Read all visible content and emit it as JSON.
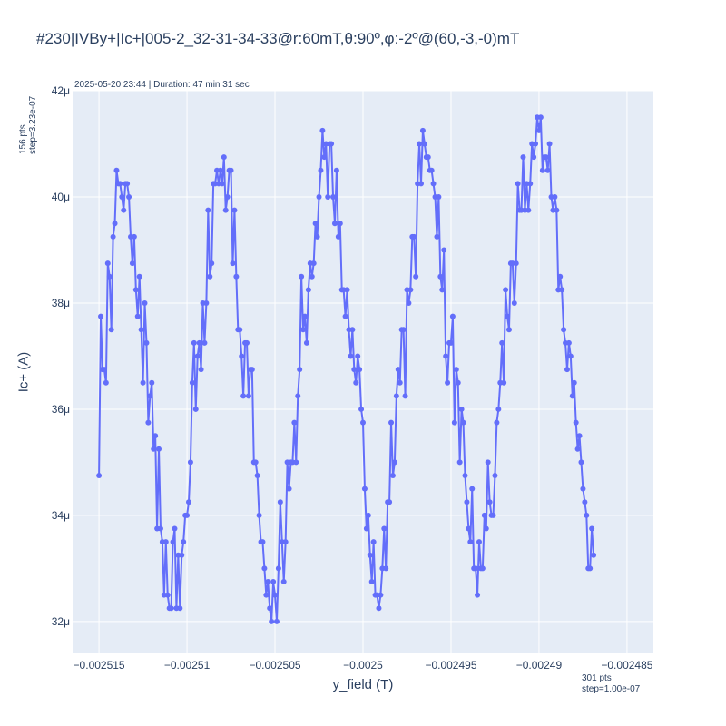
{
  "header": {
    "title": "#230|IVBy+|Ic+|005-2_32-31-34-33@r:60mT,θ:90º,φ:-2º@(60,-3,-0)mT",
    "subtitle": "2025-05-20 23:44 | Duration: 47 min 31 sec",
    "left_note_line1": "156 pts",
    "left_note_line2": "step=3.23e-07",
    "right_note_line1": "301 pts",
    "right_note_line2": "step=1.00e-07"
  },
  "colors": {
    "plot_bg": "#e5ecf6",
    "grid": "#ffffff",
    "series": "#636efa",
    "text": "#2a3f5f"
  },
  "chart_data": {
    "type": "line",
    "xlabel": "y_field (T)",
    "ylabel": "Ic+ (A)",
    "xlim": [
      -0.0025165,
      -0.0024835
    ],
    "ylim": [
      31.4,
      42
    ],
    "x_ticks": [
      -0.002515,
      -0.00251,
      -0.002505,
      -0.0025,
      -0.002495,
      -0.00249,
      -0.002485
    ],
    "x_tick_labels": [
      "−0.002515",
      "−0.00251",
      "−0.002505",
      "−0.0025",
      "−0.002495",
      "−0.00249",
      "−0.002485"
    ],
    "y_ticks": [
      32,
      34,
      36,
      38,
      40,
      42
    ],
    "y_tick_labels": [
      "32μ",
      "34μ",
      "36μ",
      "38μ",
      "40μ",
      "42μ"
    ],
    "grid": true,
    "markers": true,
    "series": [
      {
        "x_start": -0.002515,
        "x_step": 1e-07,
        "values": [
          34.75,
          37.75,
          36.75,
          36.75,
          36.5,
          38.75,
          38.5,
          37.5,
          39.25,
          39.5,
          40.5,
          40.25,
          40.25,
          40.0,
          39.75,
          40.25,
          40.25,
          40.0,
          39.25,
          38.75,
          39.25,
          38.25,
          37.75,
          38.5,
          37.5,
          36.5,
          38.0,
          37.25,
          35.75,
          36.25,
          36.5,
          35.25,
          35.5,
          33.75,
          35.25,
          33.75,
          33.5,
          32.5,
          33.5,
          32.5,
          32.25,
          32.25,
          33.5,
          33.75,
          32.25,
          33.25,
          32.25,
          33.25,
          33.5,
          34.0,
          34.0,
          34.25,
          35.0,
          36.5,
          37.25,
          36.0,
          37.0,
          37.25,
          36.75,
          38.0,
          37.25,
          38.0,
          39.75,
          38.5,
          38.75,
          40.25,
          40.25,
          40.5,
          40.25,
          40.5,
          40.25,
          40.75,
          39.75,
          40.0,
          40.5,
          40.5,
          38.75,
          39.75,
          38.5,
          37.5,
          37.5,
          37.0,
          36.25,
          37.25,
          37.25,
          36.25,
          36.75,
          36.75,
          35.0,
          35.0,
          34.75,
          34.0,
          33.5,
          33.5,
          33.0,
          32.5,
          32.75,
          32.25,
          32.0,
          32.75,
          32.5,
          32.0,
          33.0,
          34.25,
          33.5,
          32.75,
          33.5,
          35.0,
          34.5,
          35.0,
          35.0,
          35.75,
          35.0,
          36.25,
          36.75,
          38.5,
          37.5,
          37.75,
          37.25,
          38.25,
          38.75,
          38.5,
          38.75,
          39.5,
          39.25,
          40.0,
          40.5,
          41.25,
          40.75,
          41.0,
          40.0,
          41.0,
          41.0,
          40.0,
          39.5,
          40.5,
          39.25,
          39.5,
          38.25,
          38.25,
          37.75,
          38.25,
          37.5,
          37.0,
          37.5,
          36.75,
          36.5,
          37.0,
          36.75,
          36.0,
          35.75,
          34.5,
          33.75,
          34.0,
          33.25,
          32.75,
          33.5,
          32.5,
          32.5,
          32.25,
          32.5,
          33.0,
          33.75,
          33.0,
          34.25,
          34.25,
          35.75,
          34.75,
          35.0,
          36.25,
          36.75,
          36.5,
          37.5,
          37.5,
          36.25,
          38.25,
          38.0,
          38.25,
          39.25,
          39.25,
          38.5,
          40.25,
          41.0,
          40.25,
          41.25,
          41.0,
          40.75,
          40.75,
          40.5,
          40.5,
          40.25,
          40.0,
          39.25,
          40.0,
          38.5,
          38.25,
          39.0,
          37.0,
          36.5,
          37.25,
          37.25,
          37.75,
          35.75,
          36.75,
          36.5,
          35.0,
          36.0,
          35.75,
          34.75,
          34.25,
          33.75,
          33.5,
          34.5,
          33.0,
          33.0,
          32.5,
          33.5,
          33.0,
          33.0,
          34.0,
          33.75,
          35.0,
          34.25,
          34.0,
          34.0,
          34.75,
          35.75,
          36.0,
          36.5,
          37.25,
          36.5,
          38.25,
          37.75,
          37.5,
          38.75,
          38.75,
          38.0,
          38.75,
          40.25,
          39.75,
          39.75,
          40.75,
          39.75,
          40.25,
          39.75,
          40.25,
          41.0,
          40.75,
          41.0,
          41.5,
          41.25,
          41.5,
          40.5,
          40.75,
          40.75,
          40.5,
          41.0,
          40.0,
          39.75,
          40.0,
          39.75,
          38.25,
          38.5,
          38.25,
          37.5,
          37.25,
          36.75,
          37.25,
          37.0,
          36.25,
          36.5,
          35.75,
          35.25,
          35.5,
          35.0,
          34.5,
          34.25,
          34.0,
          33.0,
          33.0,
          33.75,
          33.25
        ]
      }
    ]
  }
}
